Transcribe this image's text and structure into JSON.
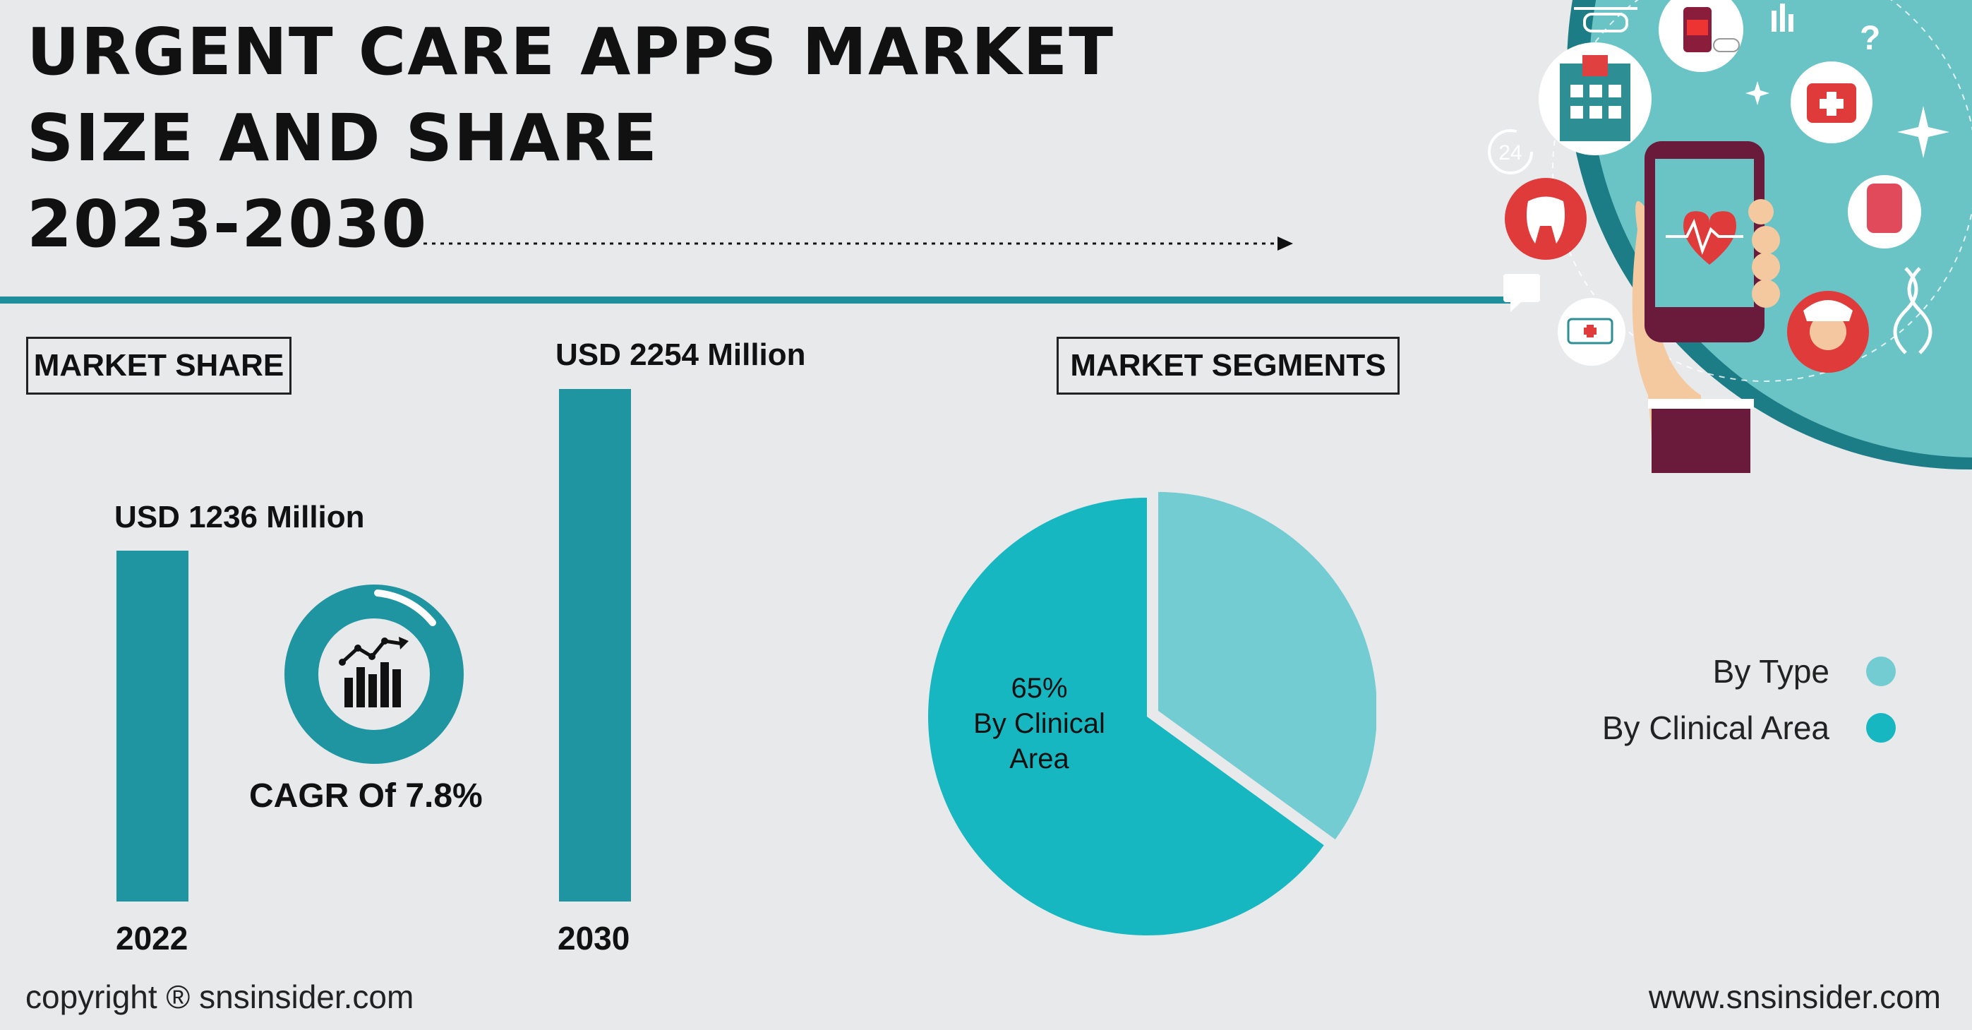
{
  "title": {
    "line1": "URGENT CARE APPS MARKET",
    "line2": "SIZE AND SHARE",
    "line3": "2023-2030"
  },
  "sections": {
    "market_share": "MARKET SHARE",
    "market_segments": "MARKET SEGMENTS"
  },
  "cagr": {
    "label": "CAGR Of 7.8%",
    "icon": "chart-growth-icon"
  },
  "colors": {
    "bar": "#1f95a1",
    "by_type": "#74ccd3",
    "by_clinical_area": "#17b7c1",
    "divider": "#1f8f9c"
  },
  "chart_data": [
    {
      "type": "bar",
      "categories": [
        "2022",
        "2030"
      ],
      "values": [
        1236,
        2254
      ],
      "value_labels": [
        "USD 1236 Million",
        "USD 2254 Million"
      ],
      "unit": "USD Million"
    },
    {
      "type": "pie",
      "slices": [
        {
          "name": "By Type",
          "value": 35
        },
        {
          "name": "By Clinical Area",
          "value": 65
        }
      ],
      "slice_label": {
        "percent": "65%",
        "line1": "By Clinical",
        "line2": "Area"
      },
      "legend_position": "right"
    }
  ],
  "footer": {
    "copyright": "copyright ® snsinsider.com",
    "website": "www.snsinsider.com"
  }
}
